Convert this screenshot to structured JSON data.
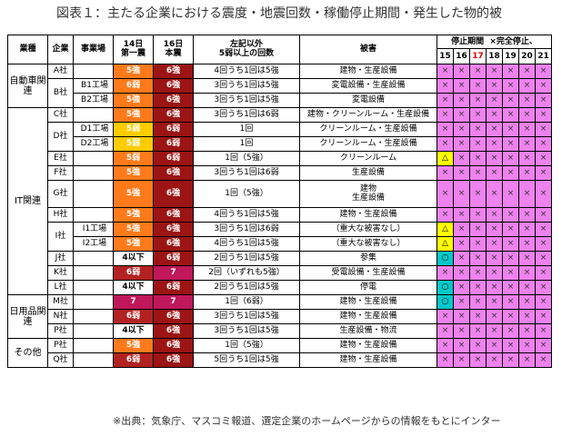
{
  "title": "図表１：主たる企業における震度・地震回数・稼働停止期間・発生した物的被",
  "note": "※出典：気象庁、マスコミ報道、選定企業のホームページからの情報をもとにインター",
  "headers": {
    "industry": "業種",
    "company": "企業",
    "site": "事業場",
    "d14_1": "14日",
    "d14_2": "第一震",
    "d16_1": "16日",
    "d16_2": "本震",
    "count_1": "左記以外",
    "count_2": "5弱以上の回数",
    "damage": "被害",
    "stop_1": "停止期間",
    "stop_2": "×完全停止、",
    "days": [
      "15",
      "16",
      "17",
      "18",
      "19",
      "20",
      "21"
    ]
  },
  "industries": {
    "auto": "自動車関連",
    "it": "IT関連",
    "daily": "日用品関連",
    "other": "その他"
  },
  "rows": [
    {
      "company": "A社",
      "site": "",
      "i14": "5強",
      "i16": "6強",
      "count": "4回うち1回は5強",
      "damage": "建物・生産設備",
      "stop": [
        "×",
        "×",
        "×",
        "×",
        "×",
        "×",
        "×"
      ]
    },
    {
      "company": "B社",
      "site": "B1工場",
      "i14": "6弱",
      "i16": "6強",
      "count": "3回うち1回は5強",
      "damage": "変電設備・生産設備",
      "stop": [
        "×",
        "×",
        "×",
        "×",
        "×",
        "×",
        "×"
      ]
    },
    {
      "company": "",
      "site": "B2工場",
      "i14": "5強",
      "i16": "6強",
      "count": "3回うち1回は5強",
      "damage": "変電設備",
      "stop": [
        "×",
        "×",
        "×",
        "×",
        "×",
        "×",
        "×"
      ]
    },
    {
      "company": "C社",
      "site": "",
      "i14": "5強",
      "i16": "6強",
      "count": "3回うち1回は6弱",
      "damage": "建物・クリーンルーム・生産設備",
      "stop": [
        "×",
        "×",
        "×",
        "×",
        "×",
        "×",
        "×"
      ]
    },
    {
      "company": "D社",
      "site": "D1工場",
      "i14": "5弱",
      "i16": "6弱",
      "count": "1回",
      "damage": "クリーンルーム・生産設備",
      "stop": [
        "×",
        "×",
        "×",
        "×",
        "×",
        "×",
        "×"
      ]
    },
    {
      "company": "",
      "site": "D2工場",
      "i14": "5弱",
      "i16": "6弱",
      "count": "1回",
      "damage": "クリーンルーム・生産設備",
      "stop": [
        "×",
        "×",
        "×",
        "×",
        "×",
        "×",
        "×"
      ]
    },
    {
      "company": "E社",
      "site": "",
      "i14": "5弱",
      "i16": "6弱",
      "count": "1回（5強）",
      "damage": "クリーンルーム",
      "stop": [
        "△",
        "×",
        "×",
        "×",
        "×",
        "×",
        "×"
      ]
    },
    {
      "company": "F社",
      "site": "",
      "i14": "5強",
      "i16": "6強",
      "count": "3回うち1回は6弱",
      "damage": "生産設備",
      "stop": [
        "×",
        "×",
        "×",
        "×",
        "×",
        "×",
        "×"
      ]
    },
    {
      "company": "G社",
      "site": "",
      "i14": "5強",
      "i16": "6強",
      "count": "1回（5強）",
      "damage": "建物\n生産設備",
      "stop": [
        "×",
        "×",
        "×",
        "×",
        "×",
        "×",
        "×"
      ]
    },
    {
      "company": "H社",
      "site": "",
      "i14": "5強",
      "i16": "6強",
      "count": "4回うち1回は5強",
      "damage": "建物・生産設備",
      "stop": [
        "×",
        "×",
        "×",
        "×",
        "×",
        "×",
        "×"
      ]
    },
    {
      "company": "I社",
      "site": "I1工場",
      "i14": "5強",
      "i16": "6強",
      "count": "3回うち1回は6弱",
      "damage": "（重大な被害なし）",
      "stop": [
        "△",
        "×",
        "×",
        "×",
        "×",
        "×",
        "×"
      ]
    },
    {
      "company": "",
      "site": "I2工場",
      "i14": "5強",
      "i16": "6強",
      "count": "4回うち1回は5強",
      "damage": "（重大な被害なし）",
      "stop": [
        "△",
        "×",
        "×",
        "×",
        "×",
        "×",
        "×"
      ]
    },
    {
      "company": "J社",
      "site": "",
      "i14": "4以下",
      "i16": "6弱",
      "count": "2回うち1回は5強",
      "damage": "参集",
      "stop": [
        "○",
        "×",
        "×",
        "×",
        "×",
        "×",
        "×"
      ]
    },
    {
      "company": "K社",
      "site": "",
      "i14": "6弱",
      "i16": "7",
      "count": "2回（いずれも5強）",
      "damage": "受電設備・生産設備",
      "stop": [
        "×",
        "×",
        "×",
        "×",
        "×",
        "×",
        "×"
      ]
    },
    {
      "company": "L社",
      "site": "",
      "i14": "4以下",
      "i16": "6弱",
      "count": "2回うち1回は5強",
      "damage": "停電",
      "stop": [
        "○",
        "×",
        "×",
        "×",
        "×",
        "×",
        "×"
      ]
    },
    {
      "company": "M社",
      "site": "",
      "i14": "7",
      "i16": "7",
      "count": "1回（6弱）",
      "damage": "建物・生産設備",
      "stop": [
        "○",
        "×",
        "×",
        "×",
        "×",
        "×",
        "×"
      ]
    },
    {
      "company": "N社",
      "site": "",
      "i14": "6弱",
      "i16": "6強",
      "count": "3回うち1回は5強",
      "damage": "建物・生産設備",
      "stop": [
        "×",
        "×",
        "×",
        "×",
        "×",
        "×",
        "×"
      ]
    },
    {
      "company": "P社",
      "site": "",
      "i14": "4以下",
      "i16": "6強",
      "count": "3回うち1回は5強",
      "damage": "生産設備・物流",
      "stop": [
        "×",
        "×",
        "×",
        "×",
        "×",
        "×",
        "×"
      ]
    },
    {
      "company": "P社",
      "site": "",
      "i14": "5強",
      "i16": "6強",
      "count": "1回（5強）",
      "damage": "建物・生産設備",
      "stop": [
        "×",
        "×",
        "×",
        "×",
        "×",
        "×",
        "×"
      ]
    },
    {
      "company": "Q社",
      "site": "",
      "i14": "6弱",
      "i16": "6強",
      "count": "5回うち1回は5強",
      "damage": "建物・生産設備",
      "stop": [
        "×",
        "×",
        "×",
        "×",
        "×",
        "×",
        "×"
      ]
    }
  ]
}
